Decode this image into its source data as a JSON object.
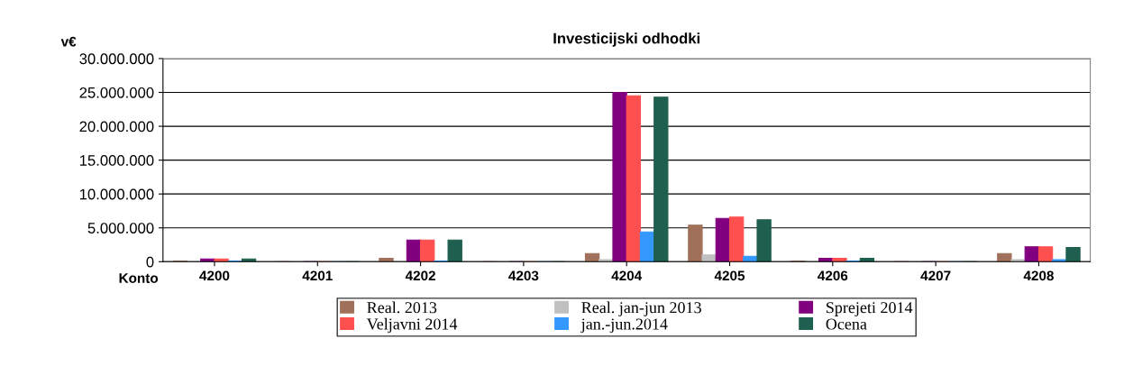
{
  "chart_data": {
    "type": "bar",
    "title": "Investicijski odhodki",
    "ylabel": "v€",
    "xlabel": "Konto",
    "categories": [
      "4200",
      "4201",
      "4202",
      "4203",
      "4204",
      "4205",
      "4206",
      "4207",
      "4208"
    ],
    "series": [
      {
        "name": "Real. 2013",
        "color": "#a0705a",
        "values": [
          100000,
          0,
          500000,
          0,
          1200000,
          5400000,
          100000,
          0,
          1200000
        ]
      },
      {
        "name": "Real. jan-jun 2013",
        "color": "#c0c0c0",
        "values": [
          0,
          0,
          null,
          0,
          300000,
          1000000,
          0,
          0,
          300000
        ]
      },
      {
        "name": "Sprejeti 2014",
        "color": "#800080",
        "values": [
          400000,
          0,
          3200000,
          0,
          25000000,
          6400000,
          500000,
          0,
          2200000
        ]
      },
      {
        "name": "Veljavni 2014",
        "color": "#ff5050",
        "values": [
          400000,
          0,
          3200000,
          0,
          24500000,
          6600000,
          500000,
          0,
          2200000
        ]
      },
      {
        "name": "jan.-jun.2014",
        "color": "#3399ff",
        "values": [
          100000,
          0,
          100000,
          0,
          4400000,
          800000,
          100000,
          0,
          300000
        ]
      },
      {
        "name": "Ocena",
        "color": "#1f5f4f",
        "values": [
          400000,
          0,
          3200000,
          0,
          24300000,
          6200000,
          500000,
          0,
          2100000
        ]
      }
    ],
    "ylim": [
      0,
      30000000
    ],
    "yticks": [
      {
        "value": 0,
        "label": "0"
      },
      {
        "value": 5000000,
        "label": "5.000.000"
      },
      {
        "value": 10000000,
        "label": "10.000.000"
      },
      {
        "value": 15000000,
        "label": "15.000.000"
      },
      {
        "value": 20000000,
        "label": "20.000.000"
      },
      {
        "value": 25000000,
        "label": "25.000.000"
      },
      {
        "value": 30000000,
        "label": "30.000.000"
      }
    ],
    "grid": "y",
    "legend": "bottom"
  }
}
